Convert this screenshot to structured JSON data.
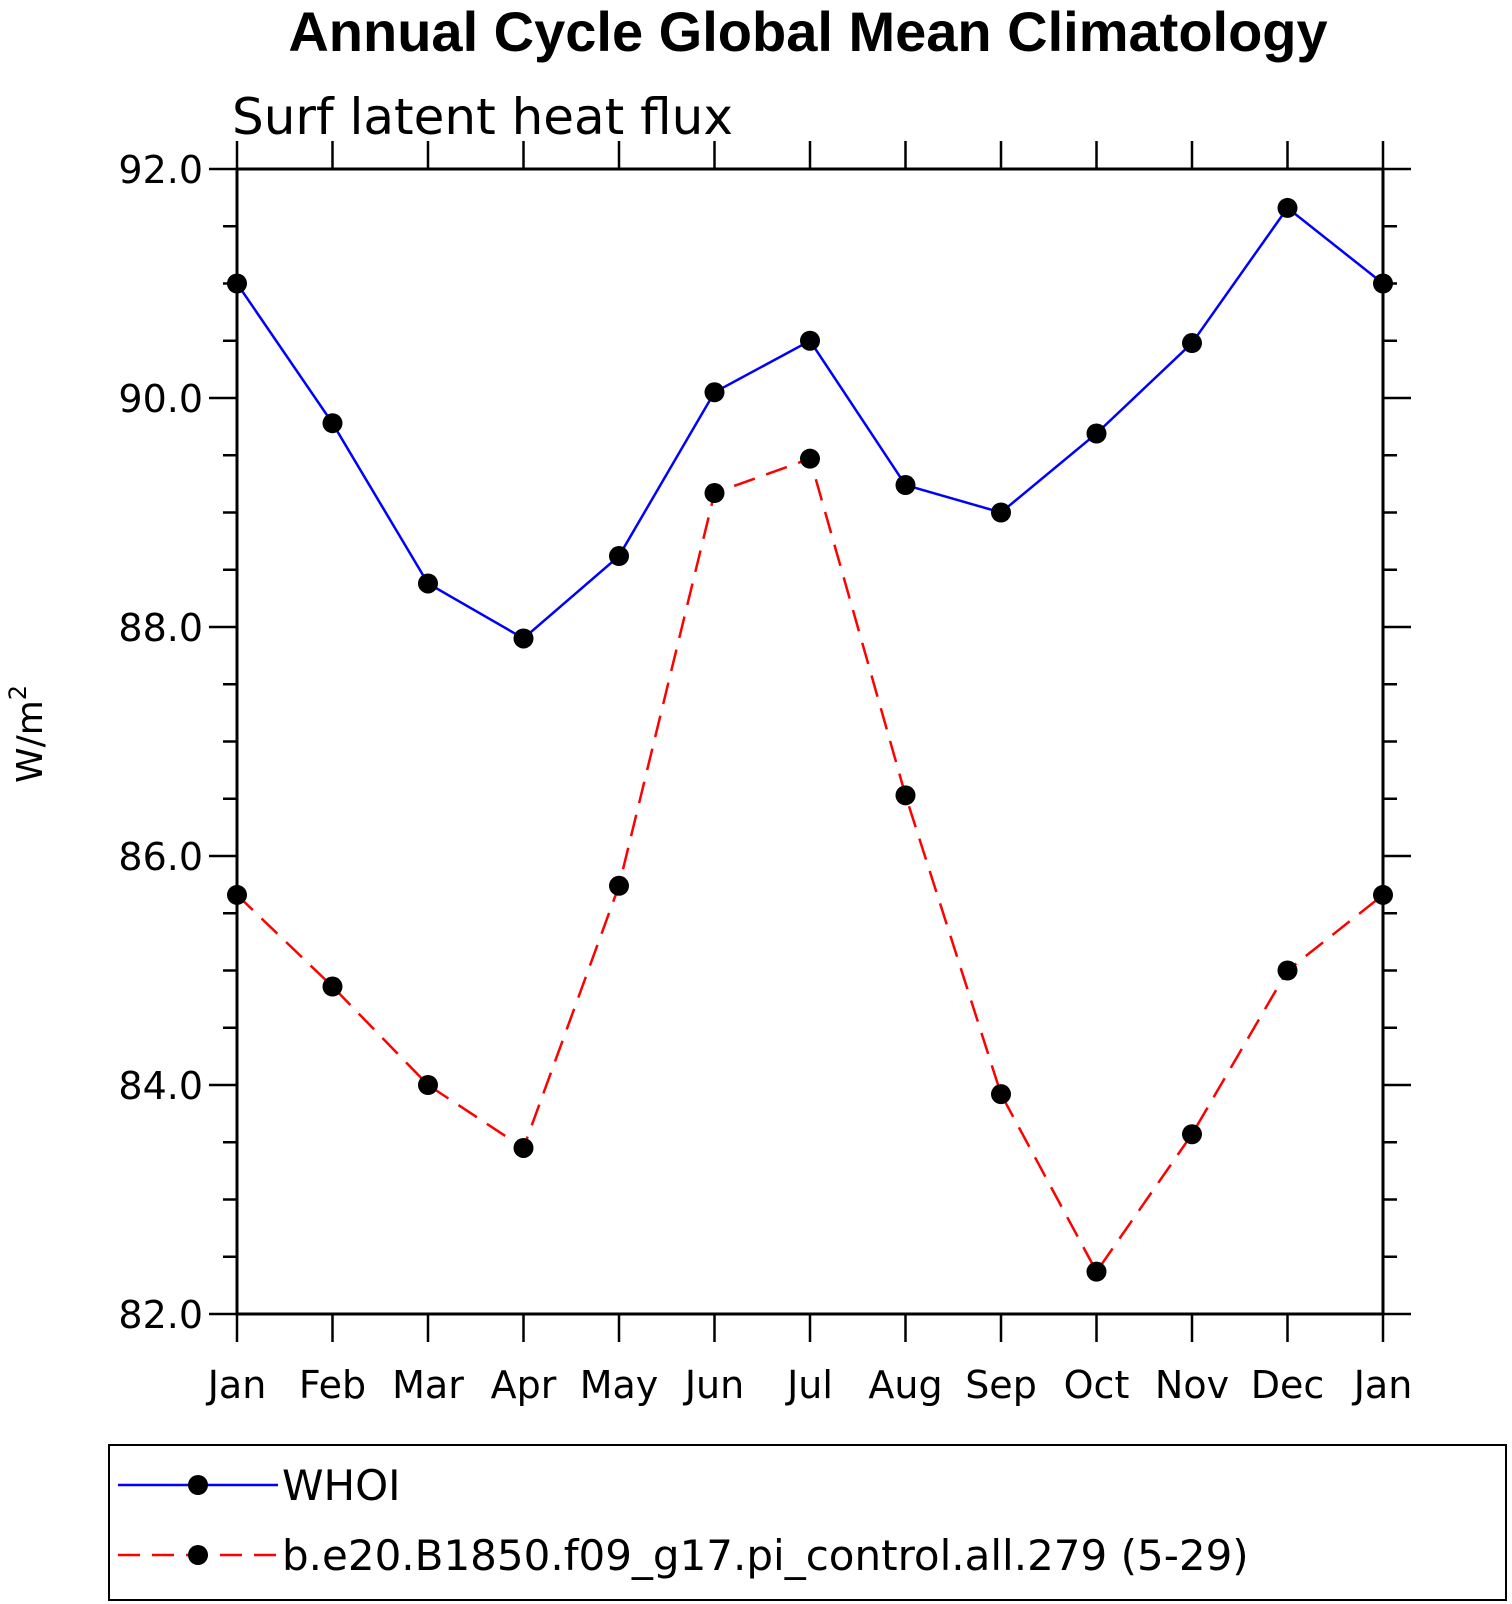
{
  "chart_data": {
    "type": "line",
    "title": "Annual Cycle Global Mean Climatology",
    "subtitle": "Surf latent heat flux",
    "ylabel": "W/m",
    "ylabel_superscript": "2",
    "xlabel": "",
    "categories": [
      "Jan",
      "Feb",
      "Mar",
      "Apr",
      "May",
      "Jun",
      "Jul",
      "Aug",
      "Sep",
      "Oct",
      "Nov",
      "Dec",
      "Jan"
    ],
    "ylim": [
      82.0,
      92.0
    ],
    "yticks": [
      "82.0",
      "84.0",
      "86.0",
      "88.0",
      "90.0",
      "92.0"
    ],
    "ytick_values": [
      82,
      84,
      86,
      88,
      90,
      92
    ],
    "yminor_step": 0.5,
    "grid": false,
    "legend_position": "bottom",
    "series": [
      {
        "name": "WHOI",
        "color": "#0000ff",
        "dash": "solid",
        "marker": "filled-circle",
        "values": [
          91.0,
          89.78,
          88.38,
          87.9,
          88.62,
          90.05,
          90.5,
          89.24,
          89.0,
          89.69,
          90.48,
          91.66,
          91.0
        ]
      },
      {
        "name": "b.e20.B1850.f09_g17.pi_control.all.279 (5-29)",
        "color": "#ff0000",
        "dash": "dashed",
        "marker": "filled-circle",
        "values": [
          85.66,
          84.86,
          84.0,
          83.45,
          85.74,
          89.17,
          89.47,
          86.53,
          83.92,
          82.37,
          83.57,
          85.0,
          85.66
        ]
      }
    ]
  }
}
